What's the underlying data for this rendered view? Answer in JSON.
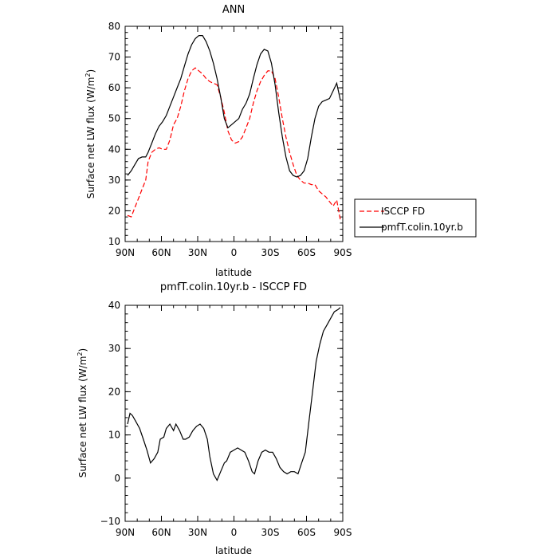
{
  "chart_data": [
    {
      "type": "line",
      "title": "ANN",
      "xlabel": "latitude",
      "ylabel": "Surface net LW flux (W/m²)",
      "ylabel_parts": [
        "Surface net LW flux (W/m",
        "2",
        ")"
      ],
      "xlim": [
        90,
        -90
      ],
      "ylim": [
        10,
        80
      ],
      "x_ticks": [
        90,
        60,
        30,
        0,
        -30,
        -60,
        -90
      ],
      "x_tick_labels": [
        "90N",
        "60N",
        "30N",
        "0",
        "30S",
        "60S",
        "90S"
      ],
      "y_ticks": [
        10,
        20,
        30,
        40,
        50,
        60,
        70,
        80
      ],
      "y_tick_labels": [
        "10",
        "20",
        "30",
        "40",
        "50",
        "60",
        "70",
        "80"
      ],
      "legend_position": "right",
      "series": [
        {
          "name": "ISCCP FD",
          "color": "#ff0000",
          "dash": "dashed",
          "x": [
            88,
            85,
            82,
            79,
            76,
            73,
            71,
            68,
            65,
            62,
            59,
            56,
            53,
            50,
            47,
            44,
            41,
            38,
            35,
            32,
            29,
            26,
            23,
            20,
            17,
            14,
            11,
            8,
            5,
            2,
            -1,
            -4,
            -7,
            -10,
            -13,
            -16,
            -19,
            -22,
            -25,
            -28,
            -31,
            -34,
            -37,
            -40,
            -43,
            -46,
            -49,
            -52,
            -55,
            -58,
            -61,
            -64,
            -67,
            -70,
            -73,
            -76,
            -79,
            -82,
            -85,
            -88
          ],
          "y": [
            18.5,
            18,
            21,
            24,
            27,
            30,
            36,
            39,
            40,
            40.5,
            40,
            40,
            43,
            48,
            50,
            54,
            59,
            63,
            65.5,
            66.5,
            65.5,
            64.5,
            63,
            62,
            61.5,
            61,
            57,
            52,
            46,
            43,
            42,
            42.5,
            44,
            47,
            50,
            55,
            59,
            62,
            64,
            65.5,
            65.5,
            63,
            57,
            50,
            44,
            39,
            35,
            31.5,
            30,
            29,
            29,
            28.5,
            28.5,
            26.5,
            25.5,
            24.5,
            23,
            21.5,
            23.5,
            17
          ]
        },
        {
          "name": "pmfT.colin.10yr.b",
          "color": "#000000",
          "dash": "solid",
          "x": [
            88,
            85,
            82,
            79,
            76,
            73,
            71,
            68,
            65,
            62,
            59,
            56,
            53,
            50,
            47,
            44,
            41,
            38,
            35,
            32,
            29,
            26,
            23,
            20,
            17,
            14,
            11,
            8,
            5,
            2,
            -1,
            -4,
            -7,
            -10,
            -13,
            -16,
            -19,
            -22,
            -25,
            -28,
            -31,
            -34,
            -37,
            -40,
            -43,
            -46,
            -49,
            -52,
            -55,
            -58,
            -61,
            -64,
            -67,
            -70,
            -73,
            -76,
            -79,
            -82,
            -85,
            -88
          ],
          "y": [
            31.5,
            33,
            35,
            37,
            37.5,
            37.5,
            39,
            42,
            45,
            47.5,
            49,
            51,
            54,
            57,
            60,
            63,
            67,
            71,
            74,
            76,
            77,
            77,
            75,
            72,
            68,
            63,
            57,
            50,
            47,
            48,
            49,
            50,
            53,
            55,
            58,
            63,
            67.5,
            71,
            72.5,
            72,
            68,
            61,
            52,
            44,
            37.5,
            33,
            31.5,
            31,
            31.5,
            33,
            37,
            44,
            50,
            54,
            55.5,
            56,
            56.5,
            59,
            61.5,
            56
          ]
        }
      ]
    },
    {
      "type": "line",
      "title": "pmfT.colin.10yr.b - ISCCP FD",
      "xlabel": "latitude",
      "ylabel": "Surface net LW flux (W/m²)",
      "ylabel_parts": [
        "Surface net LW flux (W/m",
        "2",
        ")"
      ],
      "xlim": [
        90,
        -90
      ],
      "ylim": [
        -10,
        40
      ],
      "x_ticks": [
        90,
        60,
        30,
        0,
        -30,
        -60,
        -90
      ],
      "x_tick_labels": [
        "90N",
        "60N",
        "30N",
        "0",
        "30S",
        "60S",
        "90S"
      ],
      "y_ticks": [
        -10,
        0,
        10,
        20,
        30,
        40
      ],
      "y_tick_labels": [
        "−10",
        "0",
        "10",
        "20",
        "30",
        "40"
      ],
      "series": [
        {
          "color": "#000000",
          "dash": "solid",
          "x": [
            88,
            86,
            84,
            81,
            78,
            75,
            72,
            69,
            66,
            63,
            61,
            58,
            56,
            53,
            50,
            48,
            45,
            42,
            40,
            37,
            34,
            31,
            28,
            25,
            22,
            20,
            17,
            14,
            11,
            8,
            6,
            3,
            0,
            -3,
            -6,
            -9,
            -12,
            -15,
            -17,
            -20,
            -23,
            -26,
            -29,
            -32,
            -35,
            -38,
            -41,
            -44,
            -47,
            -50,
            -53,
            -56,
            -59,
            -62,
            -65,
            -68,
            -71,
            -74,
            -77,
            -80,
            -83,
            -86,
            -88
          ],
          "y": [
            12.5,
            15,
            14.5,
            13,
            11.5,
            9,
            6.5,
            3.5,
            4.5,
            6,
            9,
            9.5,
            11.5,
            12.5,
            11,
            12.5,
            11,
            9,
            9,
            9.5,
            11,
            12,
            12.5,
            11.5,
            9,
            5,
            1,
            -0.5,
            1.5,
            3.5,
            4,
            6,
            6.5,
            7,
            6.5,
            6,
            4,
            1.5,
            1,
            4,
            6,
            6.5,
            6,
            6,
            4.5,
            2.5,
            1.5,
            1,
            1.5,
            1.5,
            1,
            3.5,
            6,
            13,
            20,
            27,
            31,
            34,
            35.5,
            37,
            38.5,
            39,
            39.5
          ]
        }
      ]
    }
  ]
}
